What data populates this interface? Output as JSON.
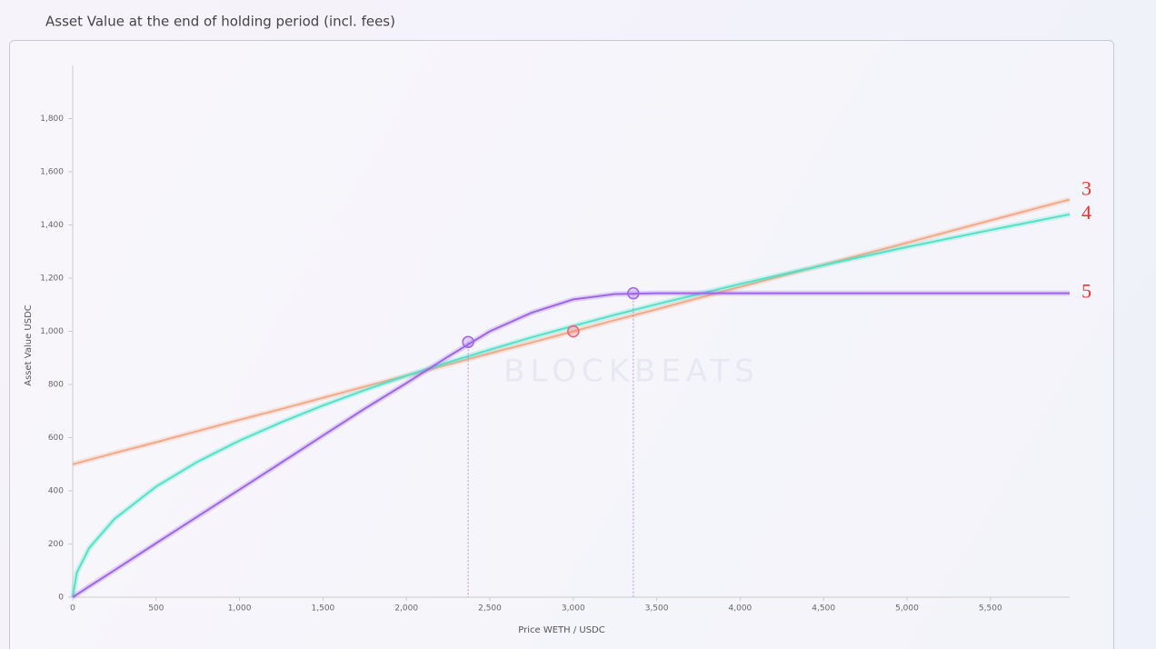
{
  "chart_data": {
    "type": "line",
    "title": "Asset Value at the end of holding period (incl. fees)",
    "x_label": "Price WETH / USDC",
    "y_label": "Asset Value USDC",
    "watermark": "BLOCKBEATS",
    "x": [
      0,
      25,
      100,
      250,
      500,
      750,
      1000,
      1250,
      1500,
      1750,
      2000,
      2250,
      2500,
      2750,
      3000,
      3250,
      3500,
      3750,
      4000,
      4500,
      5000,
      5500,
      5975
    ],
    "series": [
      {
        "name": "3",
        "color": "#f5a987",
        "values": [
          500,
          504,
          517,
          542,
          583,
          625,
          667,
          708,
          750,
          792,
          833,
          875,
          917,
          958,
          1000,
          1042,
          1083,
          1125,
          1167,
          1250,
          1333,
          1417,
          1496
        ]
      },
      {
        "name": "4",
        "color": "#4fe3c8",
        "values": [
          0,
          93,
          186,
          294,
          416,
          510,
          589,
          658,
          721,
          779,
          833,
          883,
          931,
          977,
          1020,
          1062,
          1102,
          1140,
          1178,
          1249,
          1317,
          1381,
          1440
        ]
      },
      {
        "name": "5",
        "color": "#a066e8",
        "values": [
          0,
          10,
          41,
          101,
          203,
          304,
          405,
          506,
          608,
          709,
          805,
          905,
          1000,
          1070,
          1120,
          1140,
          1143,
          1143,
          1143,
          1143,
          1143,
          1143,
          1143
        ]
      }
    ],
    "markers": [
      {
        "x": 2370,
        "y": 960,
        "color": "#a066e8",
        "drop_line": true
      },
      {
        "x": 3000,
        "y": 1000,
        "color": "#f06070",
        "drop_line": false
      },
      {
        "x": 3360,
        "y": 1143,
        "color": "#a066e8",
        "drop_line": true
      }
    ],
    "xlim": [
      0,
      5975
    ],
    "ylim": [
      0,
      2000
    ],
    "xticks": [
      0,
      500,
      {
        "value": 1000,
        "label": "1,000"
      },
      {
        "value": 1500,
        "label": "1,500"
      },
      {
        "value": 2000,
        "label": "2,000"
      },
      {
        "value": 2500,
        "label": "2,500"
      },
      {
        "value": 3000,
        "label": "3,000"
      },
      {
        "value": 3500,
        "label": "3,500"
      },
      {
        "value": 4000,
        "label": "4,000"
      },
      {
        "value": 4500,
        "label": "4,500"
      },
      {
        "value": 5000,
        "label": "5,000"
      },
      {
        "value": 5500,
        "label": "5,500"
      }
    ],
    "yticks": [
      0,
      200,
      400,
      600,
      800,
      {
        "value": 1000,
        "label": "1,000"
      },
      {
        "value": 1200,
        "label": "1,200"
      },
      {
        "value": 1400,
        "label": "1,400"
      },
      {
        "value": 1600,
        "label": "1,600"
      },
      {
        "value": 1800,
        "label": "1,800"
      }
    ],
    "label_color": "#ff2a2a"
  }
}
